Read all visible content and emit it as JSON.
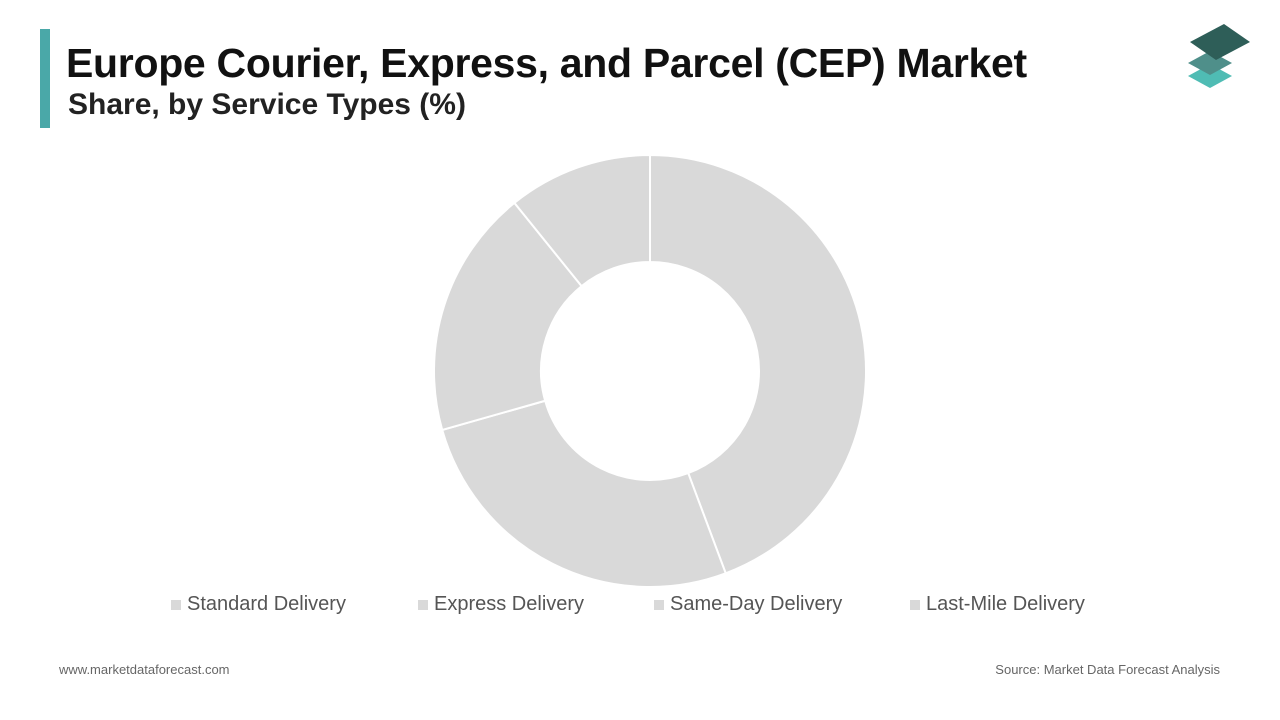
{
  "header": {
    "title": "Europe Courier, Express, and Parcel (CEP) Market",
    "subtitle": "Share, by Service Types (%)"
  },
  "colors": {
    "accent": "#4aa8a8",
    "slice": "#d9d9d9",
    "slice_border": "#ffffff",
    "logo_top": "#2e5e58",
    "logo_middle": "#4f8f8a",
    "logo_bottom": "#4fbcb4"
  },
  "chart_data": {
    "type": "pie",
    "variant": "donut",
    "categories": [
      "Standard Delivery",
      "Express Delivery",
      "Same-Day Delivery",
      "Last-Mile Delivery"
    ],
    "values": [
      44.3,
      26.3,
      18.6,
      10.8
    ],
    "title": "Europe Courier, Express, and Parcel (CEP) Market",
    "subtitle": "Share, by Service Types (%)",
    "legend": "bottom",
    "start_angle": "top",
    "direction": "clockwise"
  },
  "footer": {
    "website": "www.marketdataforecast.com",
    "source": "Source: Market Data Forecast Analysis"
  },
  "icons": {
    "logo": "stacked-layers-icon"
  }
}
